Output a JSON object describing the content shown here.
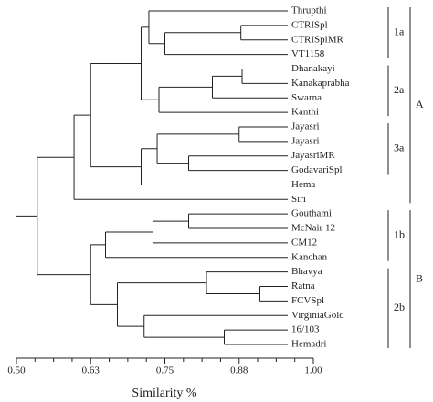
{
  "chart_data": {
    "type": "dendrogram",
    "x_label": "Similarity %",
    "xlim": [
      0.5,
      1.0
    ],
    "xticks": [
      {
        "value": 0.5,
        "label": "0.50"
      },
      {
        "value": 0.625,
        "label": "0.63"
      },
      {
        "value": 0.75,
        "label": "0.75"
      },
      {
        "value": 0.875,
        "label": "0.88"
      },
      {
        "value": 1.0,
        "label": "1.00"
      }
    ],
    "xminorticks": [
      0.53125,
      0.5625,
      0.59375,
      0.65625,
      0.6875,
      0.71875,
      0.78125,
      0.8125,
      0.84375,
      0.90625,
      0.9375,
      0.96875
    ],
    "tree": {
      "height": 0.535,
      "children": [
        {
          "height": 0.597,
          "children": [
            {
              "height": 0.625,
              "children": [
                {
                  "height": 0.71,
                  "children": [
                    {
                      "height": 0.723,
                      "children": [
                        {
                          "name": "Thrupthi"
                        },
                        {
                          "height": 0.75,
                          "children": [
                            {
                              "height": 0.878,
                              "children": [
                                {
                                  "name": "CTRISpl"
                                },
                                {
                                  "name": "CTRISplMR"
                                }
                              ]
                            },
                            {
                              "name": "VT1158"
                            }
                          ]
                        }
                      ]
                    },
                    {
                      "height": 0.74,
                      "children": [
                        {
                          "height": 0.83,
                          "children": [
                            {
                              "height": 0.88,
                              "children": [
                                {
                                  "name": "Dhanakayi"
                                },
                                {
                                  "name": "Kanakaprabha"
                                }
                              ]
                            },
                            {
                              "name": "Swarna"
                            }
                          ]
                        },
                        {
                          "name": "Kanthi"
                        }
                      ]
                    }
                  ]
                },
                {
                  "height": 0.71,
                  "children": [
                    {
                      "height": 0.737,
                      "children": [
                        {
                          "height": 0.875,
                          "children": [
                            {
                              "name": "Jayasri"
                            },
                            {
                              "name": "Jayasri"
                            }
                          ]
                        },
                        {
                          "height": 0.79,
                          "children": [
                            {
                              "name": "JayasriMR"
                            },
                            {
                              "name": "GodavariSpl"
                            }
                          ]
                        }
                      ]
                    },
                    {
                      "name": "Hema"
                    }
                  ]
                }
              ]
            },
            {
              "name": "Siri"
            }
          ]
        },
        {
          "height": 0.625,
          "children": [
            {
              "height": 0.65,
              "children": [
                {
                  "height": 0.73,
                  "children": [
                    {
                      "height": 0.79,
                      "children": [
                        {
                          "name": "Gouthami"
                        },
                        {
                          "name": "McNair 12"
                        }
                      ]
                    },
                    {
                      "name": "CM12"
                    }
                  ]
                },
                {
                  "name": "Kanchan"
                }
              ]
            },
            {
              "height": 0.67,
              "children": [
                {
                  "height": 0.82,
                  "children": [
                    {
                      "name": "Bhavya"
                    },
                    {
                      "height": 0.91,
                      "children": [
                        {
                          "name": "Ratna"
                        },
                        {
                          "name": "FCVSpl"
                        }
                      ]
                    }
                  ]
                },
                {
                  "height": 0.715,
                  "children": [
                    {
                      "name": "VirginiaGold"
                    },
                    {
                      "height": 0.85,
                      "children": [
                        {
                          "name": "16/103"
                        },
                        {
                          "name": "Hemadri"
                        }
                      ]
                    }
                  ]
                }
              ]
            }
          ]
        }
      ]
    },
    "subgroups": [
      {
        "label": "1a",
        "first": 0,
        "last": 3
      },
      {
        "label": "2a",
        "first": 4,
        "last": 7
      },
      {
        "label": "3a",
        "first": 8,
        "last": 11
      },
      {
        "label": "1b",
        "first": 14,
        "last": 17
      },
      {
        "label": "2b",
        "first": 18,
        "last": 23
      }
    ],
    "groups": [
      {
        "label": "A",
        "first": 0,
        "last": 13
      },
      {
        "label": "B",
        "first": 14,
        "last": 23
      }
    ]
  }
}
